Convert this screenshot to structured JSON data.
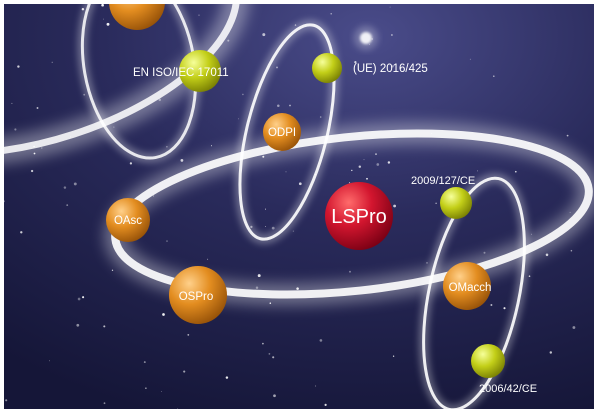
{
  "diagram": {
    "colors": {
      "space_dark": "#151638",
      "space_mid": "#3d3f7a",
      "ring": "#ffffff",
      "center_planet": "#c8102e",
      "orange_planet": "#e08a1e",
      "green_planet": "#c6d21a"
    },
    "center": {
      "label": "LSPro"
    },
    "nodes": [
      {
        "id": "en-iso-iec-17011",
        "label": "EN ISO/IEC 17011",
        "kind": "green"
      },
      {
        "id": "ue-2016-425",
        "label": "(UE) 2016/425",
        "kind": "green"
      },
      {
        "id": "odpi",
        "label": "ODPI",
        "kind": "orange"
      },
      {
        "id": "oasc",
        "label": "OAsc",
        "kind": "orange"
      },
      {
        "id": "ospro",
        "label": "OSPro",
        "kind": "orange"
      },
      {
        "id": "omacch",
        "label": "OMacch",
        "kind": "orange"
      },
      {
        "id": "2009-127-ce",
        "label": "2009/127/CE",
        "kind": "green"
      },
      {
        "id": "2006-42-ce",
        "label": "2006/42/CE",
        "kind": "green"
      }
    ]
  }
}
